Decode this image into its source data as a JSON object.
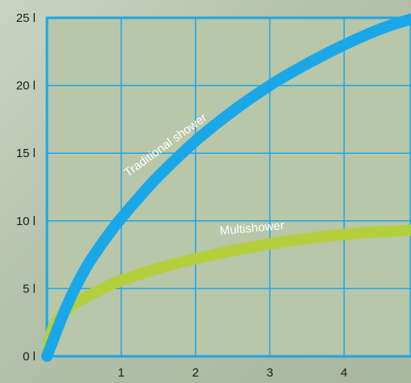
{
  "chart_data": {
    "type": "line",
    "title": "",
    "xlabel": "",
    "ylabel": "",
    "xlim": [
      0,
      4.9
    ],
    "ylim": [
      0,
      25
    ],
    "grid": true,
    "x_ticks": [
      {
        "value": 1,
        "label": "1"
      },
      {
        "value": 2,
        "label": "2"
      },
      {
        "value": 3,
        "label": "3"
      },
      {
        "value": 4,
        "label": "4"
      }
    ],
    "y_ticks": [
      {
        "value": 0,
        "label": "0 l"
      },
      {
        "value": 5,
        "label": "5 l"
      },
      {
        "value": 10,
        "label": "10 l"
      },
      {
        "value": 15,
        "label": "15 l"
      },
      {
        "value": 20,
        "label": "20 l"
      },
      {
        "value": 25,
        "label": "25 l"
      }
    ],
    "series": [
      {
        "name": "Traditional shower",
        "color": "#1aa7e8",
        "x": [
          0,
          0.25,
          0.5,
          0.75,
          1.0,
          1.25,
          1.5,
          2.0,
          2.5,
          3.0,
          3.5,
          4.0,
          4.5,
          4.9
        ],
        "y": [
          0,
          3.5,
          6.3,
          8.4,
          10.2,
          11.8,
          13.3,
          15.9,
          18.1,
          20.0,
          21.6,
          23.0,
          24.2,
          24.9
        ]
      },
      {
        "name": "Multishower",
        "color": "#b4cf3c",
        "x": [
          0,
          0.05,
          0.1,
          0.2,
          0.35,
          0.5,
          0.75,
          1.0,
          1.5,
          2.0,
          2.5,
          3.0,
          3.5,
          4.0,
          4.5,
          4.9
        ],
        "y": [
          0,
          1.5,
          2.3,
          3.1,
          3.8,
          4.3,
          5.0,
          5.6,
          6.5,
          7.2,
          7.8,
          8.3,
          8.7,
          9.0,
          9.2,
          9.3
        ]
      }
    ]
  }
}
